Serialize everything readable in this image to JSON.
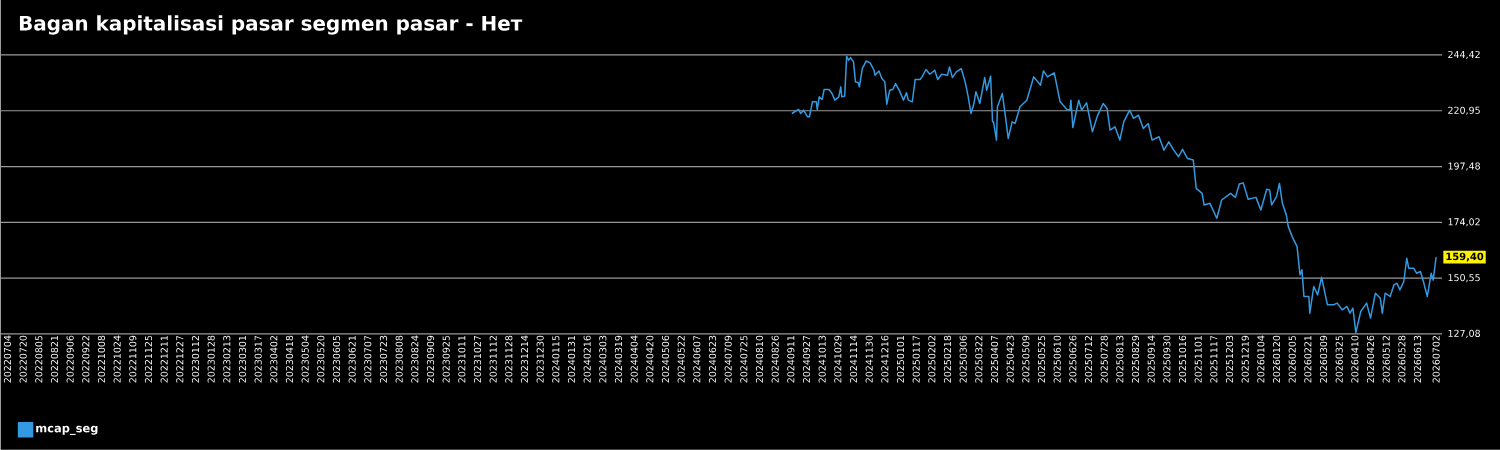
{
  "chart_data": {
    "type": "line",
    "title": "Bagan kapitalisasi pasar segmen pasar - Нет",
    "xlim": [
      "2022-06-27",
      "2026-07-08"
    ],
    "ylim": [
      127.08,
      244.42
    ],
    "yticks": [
      {
        "value": 127.08,
        "label": "127,08"
      },
      {
        "value": 150.55,
        "label": "150,55"
      },
      {
        "value": 174.02,
        "label": "174,02"
      },
      {
        "value": 197.48,
        "label": "197,48"
      },
      {
        "value": 220.95,
        "label": "220,95"
      },
      {
        "value": 244.42,
        "label": "244,42"
      }
    ],
    "xticks": [
      {
        "value": "2022-07-04",
        "label": "20220704"
      },
      {
        "value": "2022-07-20",
        "label": "20220720"
      },
      {
        "value": "2022-08-05",
        "label": "20220805"
      },
      {
        "value": "2022-08-21",
        "label": "20220821"
      },
      {
        "value": "2022-09-06",
        "label": "20220906"
      },
      {
        "value": "2022-09-22",
        "label": "20220922"
      },
      {
        "value": "2022-10-08",
        "label": "20221008"
      },
      {
        "value": "2022-10-24",
        "label": "20221024"
      },
      {
        "value": "2022-11-09",
        "label": "20221109"
      },
      {
        "value": "2022-11-25",
        "label": "20221125"
      },
      {
        "value": "2022-12-11",
        "label": "20221211"
      },
      {
        "value": "2022-12-27",
        "label": "20221227"
      },
      {
        "value": "2023-01-12",
        "label": "20230112"
      },
      {
        "value": "2023-01-28",
        "label": "20230128"
      },
      {
        "value": "2023-02-13",
        "label": "20230213"
      },
      {
        "value": "2023-03-01",
        "label": "20230301"
      },
      {
        "value": "2023-03-17",
        "label": "20230317"
      },
      {
        "value": "2023-04-02",
        "label": "20230402"
      },
      {
        "value": "2023-04-18",
        "label": "20230418"
      },
      {
        "value": "2023-05-04",
        "label": "20230504"
      },
      {
        "value": "2023-05-20",
        "label": "20230520"
      },
      {
        "value": "2023-06-05",
        "label": "20230605"
      },
      {
        "value": "2023-06-21",
        "label": "20230621"
      },
      {
        "value": "2023-07-07",
        "label": "20230707"
      },
      {
        "value": "2023-07-23",
        "label": "20230723"
      },
      {
        "value": "2023-08-08",
        "label": "20230808"
      },
      {
        "value": "2023-08-24",
        "label": "20230824"
      },
      {
        "value": "2023-09-09",
        "label": "20230909"
      },
      {
        "value": "2023-09-25",
        "label": "20230925"
      },
      {
        "value": "2023-10-11",
        "label": "20231011"
      },
      {
        "value": "2023-10-27",
        "label": "20231027"
      },
      {
        "value": "2023-11-12",
        "label": "20231112"
      },
      {
        "value": "2023-11-28",
        "label": "20231128"
      },
      {
        "value": "2023-12-14",
        "label": "20231214"
      },
      {
        "value": "2023-12-30",
        "label": "20231230"
      },
      {
        "value": "2024-01-15",
        "label": "20240115"
      },
      {
        "value": "2024-01-31",
        "label": "20240131"
      },
      {
        "value": "2024-02-16",
        "label": "20240216"
      },
      {
        "value": "2024-03-03",
        "label": "20240303"
      },
      {
        "value": "2024-03-19",
        "label": "20240319"
      },
      {
        "value": "2024-04-04",
        "label": "20240404"
      },
      {
        "value": "2024-04-20",
        "label": "20240420"
      },
      {
        "value": "2024-05-06",
        "label": "20240506"
      },
      {
        "value": "2024-05-22",
        "label": "20240522"
      },
      {
        "value": "2024-06-07",
        "label": "20240607"
      },
      {
        "value": "2024-06-23",
        "label": "20240623"
      },
      {
        "value": "2024-07-09",
        "label": "20240709"
      },
      {
        "value": "2024-07-25",
        "label": "20240725"
      },
      {
        "value": "2024-08-10",
        "label": "20240810"
      },
      {
        "value": "2024-08-26",
        "label": "20240826"
      },
      {
        "value": "2024-09-11",
        "label": "20240911"
      },
      {
        "value": "2024-09-27",
        "label": "20240927"
      },
      {
        "value": "2024-10-13",
        "label": "20241013"
      },
      {
        "value": "2024-10-29",
        "label": "20241029"
      },
      {
        "value": "2024-11-14",
        "label": "20241114"
      },
      {
        "value": "2024-11-30",
        "label": "20241130"
      },
      {
        "value": "2024-12-16",
        "label": "20241216"
      },
      {
        "value": "2025-01-01",
        "label": "20250101"
      },
      {
        "value": "2025-01-17",
        "label": "20250117"
      },
      {
        "value": "2025-02-02",
        "label": "20250202"
      },
      {
        "value": "2025-02-18",
        "label": "20250218"
      },
      {
        "value": "2025-03-06",
        "label": "20250306"
      },
      {
        "value": "2025-03-22",
        "label": "20250322"
      },
      {
        "value": "2025-04-07",
        "label": "20250407"
      },
      {
        "value": "2025-04-23",
        "label": "20250423"
      },
      {
        "value": "2025-05-09",
        "label": "20250509"
      },
      {
        "value": "2025-05-25",
        "label": "20250525"
      },
      {
        "value": "2025-06-10",
        "label": "20250610"
      },
      {
        "value": "2025-06-26",
        "label": "20250626"
      },
      {
        "value": "2025-07-12",
        "label": "20250712"
      },
      {
        "value": "2025-07-28",
        "label": "20250728"
      },
      {
        "value": "2025-08-13",
        "label": "20250813"
      },
      {
        "value": "2025-08-29",
        "label": "20250829"
      },
      {
        "value": "2025-09-14",
        "label": "20250914"
      },
      {
        "value": "2025-09-30",
        "label": "20250930"
      },
      {
        "value": "2025-10-16",
        "label": "20251016"
      },
      {
        "value": "2025-11-01",
        "label": "20251101"
      },
      {
        "value": "2025-11-17",
        "label": "20251117"
      },
      {
        "value": "2025-12-03",
        "label": "20251203"
      },
      {
        "value": "2025-12-19",
        "label": "20251219"
      },
      {
        "value": "2026-01-04",
        "label": "20260104"
      },
      {
        "value": "2026-01-20",
        "label": "20260120"
      },
      {
        "value": "2026-02-05",
        "label": "20260205"
      },
      {
        "value": "2026-02-21",
        "label": "20260221"
      },
      {
        "value": "2026-03-09",
        "label": "20260309"
      },
      {
        "value": "2026-03-25",
        "label": "20260325"
      },
      {
        "value": "2026-04-10",
        "label": "20260410"
      },
      {
        "value": "2026-04-26",
        "label": "20260426"
      },
      {
        "value": "2026-05-12",
        "label": "20260512"
      },
      {
        "value": "2026-05-28",
        "label": "20260528"
      },
      {
        "value": "2026-06-13",
        "label": "20260613"
      },
      {
        "value": "2026-07-02",
        "label": "20260702"
      }
    ],
    "grid": "y",
    "legend": "bottom left",
    "annotations": [
      {
        "text": "159,40",
        "x": "2026-07-02",
        "y": 159.4
      }
    ],
    "series": [
      {
        "name": "mcap_seg",
        "color": "#3399e0",
        "x": [
          "2024-09-12",
          "2024-09-19",
          "2024-09-21",
          "2024-09-24",
          "2024-09-28",
          "2024-09-30",
          "2024-10-03",
          "2024-10-07",
          "2024-10-08",
          "2024-10-10",
          "2024-10-13",
          "2024-10-15",
          "2024-10-20",
          "2024-10-23",
          "2024-10-26",
          "2024-10-30",
          "2024-11-01",
          "2024-11-02",
          "2024-11-05",
          "2024-11-07",
          "2024-11-09",
          "2024-11-11",
          "2024-11-14",
          "2024-11-16",
          "2024-11-19",
          "2024-11-20",
          "2024-11-23",
          "2024-11-27",
          "2024-12-01",
          "2024-12-05",
          "2024-12-06",
          "2024-12-10",
          "2024-12-13",
          "2024-12-16",
          "2024-12-18",
          "2024-12-21",
          "2024-12-24",
          "2024-12-27",
          "2024-12-31",
          "2025-01-04",
          "2025-01-07",
          "2025-01-09",
          "2025-01-13",
          "2025-01-16",
          "2025-01-21",
          "2025-01-23",
          "2025-01-27",
          "2025-01-31",
          "2025-02-05",
          "2025-02-08",
          "2025-02-12",
          "2025-02-18",
          "2025-02-20",
          "2025-02-23",
          "2025-02-27",
          "2025-03-04",
          "2025-03-08",
          "2025-03-11",
          "2025-03-14",
          "2025-03-17",
          "2025-03-19",
          "2025-03-23",
          "2025-03-28",
          "2025-03-30",
          "2025-04-03",
          "2025-04-05",
          "2025-04-06",
          "2025-04-09",
          "2025-04-10",
          "2025-04-15",
          "2025-04-18",
          "2025-04-21",
          "2025-04-25",
          "2025-04-28",
          "2025-05-03",
          "2025-05-10",
          "2025-05-17",
          "2025-05-24",
          "2025-05-27",
          "2025-05-31",
          "2025-06-07",
          "2025-06-13",
          "2025-06-20",
          "2025-06-23",
          "2025-06-24",
          "2025-06-26",
          "2025-07-02",
          "2025-07-05",
          "2025-07-10",
          "2025-07-16",
          "2025-07-21",
          "2025-07-27",
          "2025-07-31",
          "2025-08-03",
          "2025-08-08",
          "2025-08-13",
          "2025-08-17",
          "2025-08-23",
          "2025-08-27",
          "2025-09-01",
          "2025-09-06",
          "2025-09-11",
          "2025-09-15",
          "2025-09-22",
          "2025-09-27",
          "2025-10-02",
          "2025-10-07",
          "2025-10-12",
          "2025-10-16",
          "2025-10-21",
          "2025-10-27",
          "2025-10-30",
          "2025-11-05",
          "2025-11-07",
          "2025-11-13",
          "2025-11-20",
          "2025-11-25",
          "2025-12-04",
          "2025-12-09",
          "2025-12-13",
          "2025-12-17",
          "2025-12-22",
          "2025-12-30",
          "2026-01-04",
          "2026-01-10",
          "2026-01-13",
          "2026-01-15",
          "2026-01-20",
          "2026-01-23",
          "2026-01-26",
          "2026-01-30",
          "2026-02-01",
          "2026-02-05",
          "2026-02-10",
          "2026-02-13",
          "2026-02-15",
          "2026-02-17",
          "2026-02-22",
          "2026-02-23",
          "2026-02-27",
          "2026-03-03",
          "2026-03-07",
          "2026-03-13",
          "2026-03-19",
          "2026-03-23",
          "2026-03-28",
          "2026-04-02",
          "2026-04-05",
          "2026-04-08",
          "2026-04-11",
          "2026-04-16",
          "2026-04-22",
          "2026-04-26",
          "2026-05-01",
          "2026-05-06",
          "2026-05-08",
          "2026-05-11",
          "2026-05-16",
          "2026-05-20",
          "2026-05-23",
          "2026-05-26",
          "2026-05-30",
          "2026-06-02",
          "2026-06-04",
          "2026-06-09",
          "2026-06-12",
          "2026-06-16",
          "2026-06-19",
          "2026-06-23",
          "2026-06-27",
          "2026-06-29",
          "2026-07-02"
        ],
        "values": [
          219.8,
          221.5,
          219.8,
          221.2,
          218.4,
          218.4,
          224.7,
          224.7,
          221.5,
          226.8,
          225.7,
          229.9,
          229.9,
          228.2,
          225.4,
          226.8,
          231.0,
          226.8,
          227.1,
          243.9,
          242.2,
          243.3,
          241.5,
          233.1,
          232.7,
          231.0,
          238.7,
          241.9,
          241.1,
          238.0,
          235.9,
          237.7,
          234.5,
          233.1,
          223.7,
          229.6,
          229.9,
          232.4,
          229.3,
          225.4,
          228.5,
          225.4,
          224.7,
          234.1,
          234.1,
          235.2,
          238.3,
          236.3,
          238.0,
          234.1,
          236.3,
          235.9,
          239.4,
          234.9,
          237.3,
          238.7,
          233.1,
          227.1,
          219.8,
          224.0,
          228.9,
          224.0,
          234.9,
          229.6,
          235.5,
          216.3,
          216.3,
          208.6,
          222.6,
          228.2,
          219.1,
          209.3,
          216.3,
          215.6,
          222.6,
          225.4,
          235.2,
          231.7,
          237.7,
          235.2,
          236.9,
          224.7,
          221.5,
          221.2,
          225.4,
          213.9,
          225.4,
          221.2,
          224.3,
          212.1,
          218.7,
          224.0,
          221.9,
          212.8,
          214.2,
          208.6,
          216.3,
          221.2,
          217.7,
          219.1,
          213.5,
          215.6,
          208.6,
          210.0,
          204.4,
          207.9,
          204.4,
          201.6,
          204.7,
          200.9,
          200.2,
          188.3,
          186.2,
          181.3,
          182.0,
          175.7,
          183.4,
          186.2,
          184.5,
          190.1,
          190.6,
          183.7,
          184.5,
          179.2,
          187.9,
          187.6,
          181.3,
          184.8,
          190.4,
          182.0,
          177.1,
          172.2,
          168.0,
          163.8,
          151.9,
          154.0,
          142.8,
          142.8,
          135.8,
          147.0,
          143.5,
          150.9,
          139.3,
          139.3,
          140.0,
          137.2,
          138.6,
          135.8,
          137.9,
          127.6,
          136.5,
          140.0,
          133.7,
          144.2,
          142.1,
          135.8,
          144.2,
          142.8,
          147.7,
          148.4,
          145.6,
          149.1,
          158.9,
          154.7,
          154.7,
          152.6,
          153.3,
          149.1,
          142.8,
          152.6,
          149.7,
          159.4
        ]
      }
    ]
  }
}
